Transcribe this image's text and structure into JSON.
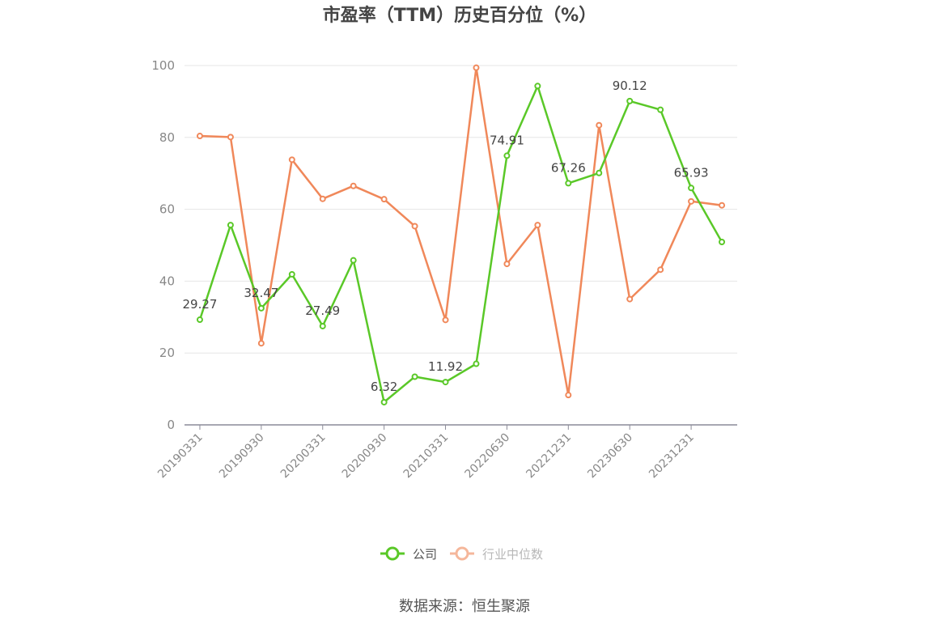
{
  "chart_data": {
    "type": "line",
    "title": "市盈率（TTM）历史百分位（%）",
    "source": "数据来源：恒生聚源",
    "ylim": [
      0,
      100
    ],
    "yticks": [
      0,
      20,
      40,
      60,
      80,
      100
    ],
    "grid": true,
    "legend_position": "bottom",
    "categories": [
      "20190331",
      "20190630",
      "20190930",
      "20191231",
      "20200331",
      "20200630",
      "20200930",
      "20201231",
      "20210331",
      "20210630",
      "20220630",
      "20220930",
      "20221231",
      "20230331",
      "20230630",
      "20230930",
      "20231231",
      "20240331"
    ],
    "xtick_labels": [
      "20190331",
      "20190930",
      "20200331",
      "20200930",
      "20210331",
      "20220630",
      "20221231",
      "20230630",
      "20231231"
    ],
    "xtick_indices": [
      0,
      2,
      4,
      6,
      8,
      10,
      12,
      14,
      16
    ],
    "series": [
      {
        "name": "公司",
        "color": "#5ac828",
        "values": [
          29.27,
          55.6,
          32.47,
          41.9,
          27.49,
          45.8,
          6.32,
          13.4,
          11.92,
          17.0,
          74.91,
          94.3,
          67.26,
          70.1,
          90.12,
          87.7,
          65.93,
          50.9
        ],
        "labeled_indices": [
          0,
          2,
          4,
          6,
          8,
          10,
          12,
          14,
          16
        ]
      },
      {
        "name": "行业中位数",
        "color": "#f0885a",
        "values": [
          80.4,
          80.1,
          22.7,
          73.8,
          62.9,
          66.5,
          62.8,
          55.3,
          29.2,
          99.4,
          44.8,
          55.6,
          8.3,
          83.4,
          35.0,
          43.2,
          62.2,
          61.1
        ]
      }
    ]
  }
}
